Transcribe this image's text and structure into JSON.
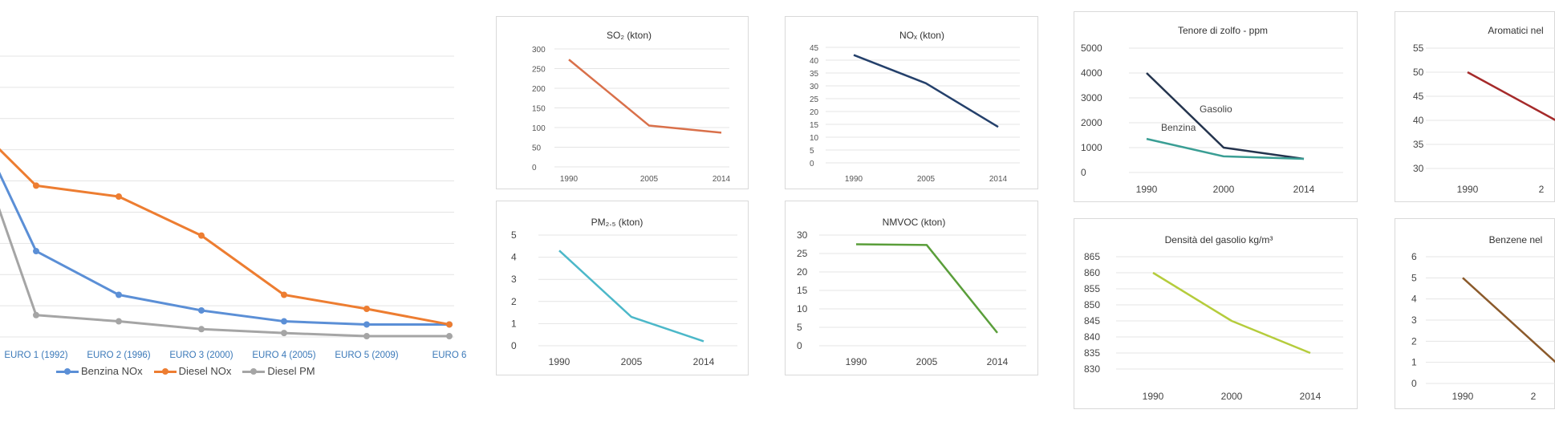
{
  "chart_data": [
    {
      "id": "euro",
      "type": "line",
      "title": "",
      "categories": [
        "EURO 1 (1992)",
        "EURO 2 (1996)",
        "EURO 3 (2000)",
        "EURO 4 (2005)",
        "EURO 5 (2009)",
        "EURO 6"
      ],
      "series": [
        {
          "name": "Benzina NOx",
          "color": "#5b8fd6",
          "values": [
            0.55,
            0.27,
            0.17,
            0.1,
            0.08,
            0.08
          ]
        },
        {
          "name": "Diesel NOx",
          "color": "#ed7d31",
          "values": [
            0.97,
            0.9,
            0.65,
            0.27,
            0.18,
            0.08
          ]
        },
        {
          "name": "Diesel PM",
          "color": "#a5a5a5",
          "values": [
            0.14,
            0.1,
            0.05,
            0.025,
            0.005,
            0.005
          ]
        }
      ],
      "ylim": [
        0,
        1.8
      ],
      "grid": true,
      "legend": "bottom"
    },
    {
      "id": "so2",
      "type": "line",
      "title": "SO₂ (kton)",
      "x": [
        "1990",
        "2005",
        "2014"
      ],
      "series": [
        {
          "color": "#d9704a",
          "values": [
            273,
            105,
            87
          ]
        }
      ],
      "yticks": [
        "0",
        "50",
        "100",
        "150",
        "200",
        "250",
        "300"
      ],
      "ylim": [
        0,
        300
      ],
      "grid": true
    },
    {
      "id": "nox",
      "type": "line",
      "title": "NOₓ (kton)",
      "x": [
        "1990",
        "2005",
        "2014"
      ],
      "series": [
        {
          "color": "#24406b",
          "values": [
            42,
            31,
            14
          ]
        }
      ],
      "yticks": [
        "0",
        "5",
        "10",
        "15",
        "20",
        "25",
        "30",
        "35",
        "40",
        "45"
      ],
      "ylim": [
        0,
        45
      ],
      "grid": true
    },
    {
      "id": "zolfo",
      "type": "line",
      "title": "Tenore di zolfo - ppm",
      "x": [
        "1990",
        "2000",
        "2014"
      ],
      "series": [
        {
          "name": "Gasolio",
          "color": "#24344e",
          "values": [
            4000,
            1000,
            550
          ]
        },
        {
          "name": "Benzina",
          "color": "#3a9e94",
          "values": [
            1350,
            650,
            550
          ]
        }
      ],
      "yticks": [
        "0",
        "1000",
        "2000",
        "3000",
        "4000",
        "5000"
      ],
      "ylim": [
        0,
        5000
      ],
      "grid": true
    },
    {
      "id": "aromatici",
      "type": "line",
      "title": "Aromatici nel",
      "x": [
        "1990",
        "2"
      ],
      "series": [
        {
          "color": "#a52a2a",
          "values": [
            50,
            40
          ]
        }
      ],
      "yticks": [
        "30",
        "35",
        "40",
        "45",
        "50",
        "55"
      ],
      "ylim": [
        30,
        55
      ],
      "grid": true
    },
    {
      "id": "pm25",
      "type": "line",
      "title": "PM₂.₅ (kton)",
      "x": [
        "1990",
        "2005",
        "2014"
      ],
      "series": [
        {
          "color": "#4cb8c9",
          "values": [
            4.3,
            1.3,
            0.2
          ]
        }
      ],
      "yticks": [
        "0",
        "1",
        "2",
        "3",
        "4",
        "5"
      ],
      "ylim": [
        0,
        5
      ],
      "grid": true
    },
    {
      "id": "nmvoc",
      "type": "line",
      "title": "NMVOC (kton)",
      "x": [
        "1990",
        "2005",
        "2014"
      ],
      "series": [
        {
          "color": "#5a9e3a",
          "values": [
            27.5,
            27.3,
            3.5
          ]
        }
      ],
      "yticks": [
        "0",
        "5",
        "10",
        "15",
        "20",
        "25",
        "30"
      ],
      "ylim": [
        0,
        30
      ],
      "grid": true
    },
    {
      "id": "densita",
      "type": "line",
      "title": "Densità del gasolio kg/m³",
      "x": [
        "1990",
        "2000",
        "2014"
      ],
      "series": [
        {
          "color": "#b5cc3c",
          "values": [
            860,
            845,
            835
          ]
        }
      ],
      "yticks": [
        "830",
        "835",
        "840",
        "845",
        "850",
        "855",
        "860",
        "865"
      ],
      "ylim": [
        830,
        865
      ],
      "grid": true
    },
    {
      "id": "benzene",
      "type": "line",
      "title": "Benzene nel",
      "x": [
        "1990",
        "2"
      ],
      "series": [
        {
          "color": "#8b5a2b",
          "values": [
            5,
            1
          ]
        }
      ],
      "yticks": [
        "0",
        "1",
        "2",
        "3",
        "4",
        "5",
        "6"
      ],
      "ylim": [
        0,
        6
      ],
      "grid": true
    }
  ]
}
